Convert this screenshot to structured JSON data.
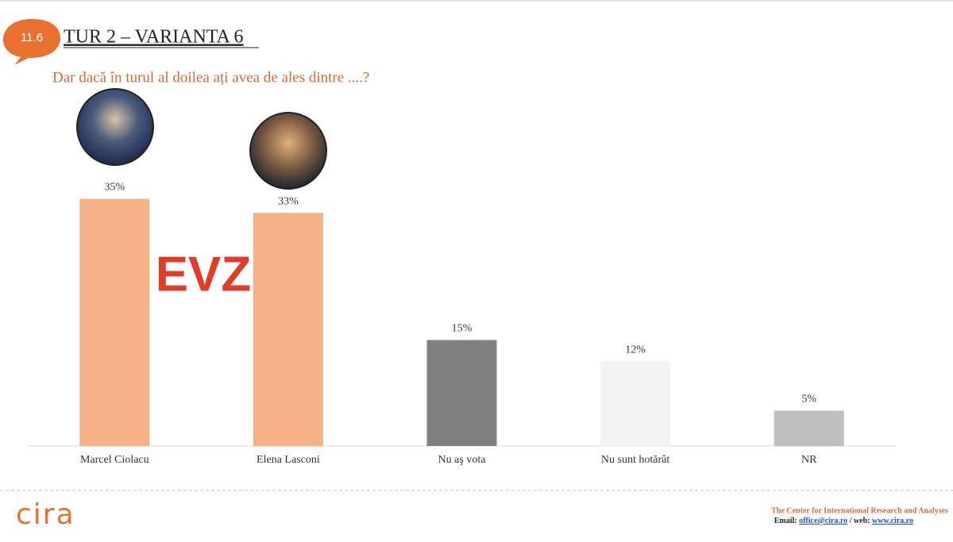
{
  "page": {
    "badge": "11.6",
    "title": "TUR 2 – VARIANTA 6",
    "watermark": "EVZ",
    "logo": "cira",
    "footer_title": "The Center for International Research and Analyses",
    "footer_email_label": "Email:",
    "footer_email": "office@cira.ro",
    "footer_web_label": "/ web:",
    "footer_web": "www.cira.ro"
  },
  "chart_data": {
    "type": "bar",
    "subtitle": "Dar dacă în turul al doilea ați avea de ales dintre ....?",
    "categories": [
      "Marcel Ciolacu",
      "Elena Lasconi",
      "Nu aş vota",
      "Nu sunt hotărât",
      "NR"
    ],
    "values": [
      35,
      33,
      15,
      12,
      5
    ],
    "value_labels": [
      "35%",
      "33%",
      "15%",
      "12%",
      "5%"
    ],
    "colors": [
      "#f4b183",
      "#f4b183",
      "#808080",
      "#f2f2f2",
      "#bfbfbf"
    ]
  }
}
